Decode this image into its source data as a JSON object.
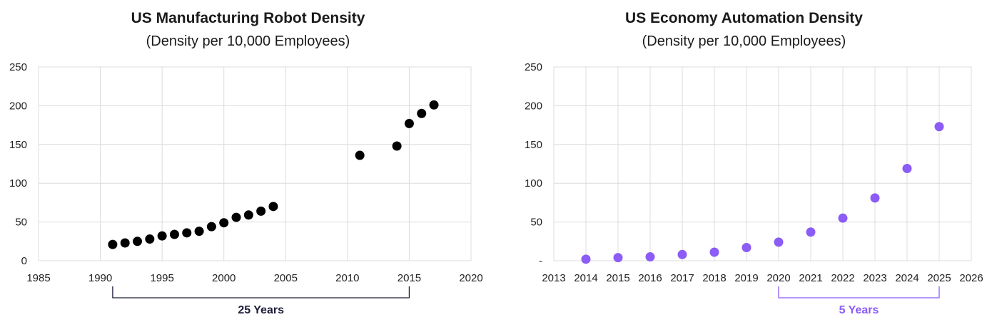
{
  "chart_data": [
    {
      "type": "scatter",
      "title": "US Manufacturing Robot Density",
      "subtitle": "(Density per 10,000 Employees)",
      "xlim": [
        1985,
        2020
      ],
      "ylim": [
        0,
        250
      ],
      "x_ticks": [
        "1985",
        "1990",
        "1995",
        "2000",
        "2005",
        "2010",
        "2015",
        "2020"
      ],
      "y_ticks": [
        "0",
        "50",
        "100",
        "150",
        "200",
        "250"
      ],
      "grid": true,
      "marker_color": "#000000",
      "x": [
        1991,
        1992,
        1993,
        1994,
        1995,
        1996,
        1997,
        1998,
        1999,
        2000,
        2001,
        2002,
        2003,
        2004,
        2011,
        2014,
        2015,
        2016,
        2017
      ],
      "y": [
        21,
        23,
        25,
        28,
        32,
        34,
        36,
        38,
        44,
        49,
        56,
        59,
        64,
        70,
        136,
        148,
        177,
        190,
        201
      ],
      "span": {
        "from": 1991,
        "to": 2015,
        "label": "25 Years",
        "color": "#1e1e3c"
      }
    },
    {
      "type": "scatter",
      "title": "US Economy Automation Density",
      "subtitle": "(Density per 10,000 Employees)",
      "xlim": [
        2013,
        2026
      ],
      "ylim": [
        0,
        250
      ],
      "x_ticks": [
        "2013",
        "2014",
        "2015",
        "2016",
        "2017",
        "2018",
        "2019",
        "2020",
        "2021",
        "2022",
        "2023",
        "2024",
        "2025",
        "2026"
      ],
      "y_ticks": [
        "-",
        "50",
        "100",
        "150",
        "200",
        "250"
      ],
      "grid": true,
      "marker_color": "#8b5cf6",
      "x": [
        2014,
        2015,
        2016,
        2017,
        2018,
        2019,
        2020,
        2021,
        2022,
        2023,
        2024,
        2025
      ],
      "y": [
        2,
        4,
        5,
        8,
        11,
        17,
        24,
        37,
        55,
        81,
        119,
        173
      ],
      "span": {
        "from": 2020,
        "to": 2025,
        "label": "5 Years",
        "color": "#8b5cf6"
      }
    }
  ]
}
